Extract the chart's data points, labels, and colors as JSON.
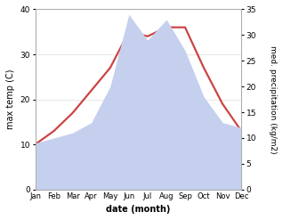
{
  "months": [
    "Jan",
    "Feb",
    "Mar",
    "Apr",
    "May",
    "Jun",
    "Jul",
    "Aug",
    "Sep",
    "Oct",
    "Nov",
    "Dec"
  ],
  "temperature": [
    10,
    13,
    17,
    22,
    27,
    35,
    34,
    36,
    36,
    27,
    19,
    13
  ],
  "precipitation": [
    9,
    10,
    11,
    13,
    20,
    34,
    29,
    33,
    27,
    18,
    13,
    12
  ],
  "temp_color": "#cc4444",
  "precip_fill_color": "#c5d0ee",
  "temp_ylim": [
    0,
    40
  ],
  "precip_ylim": [
    0,
    35
  ],
  "temp_yticks": [
    0,
    10,
    20,
    30,
    40
  ],
  "precip_yticks": [
    0,
    5,
    10,
    15,
    20,
    25,
    30,
    35
  ],
  "xlabel": "date (month)",
  "ylabel_left": "max temp (C)",
  "ylabel_right": "med. precipitation (kg/m2)",
  "bg_color": "#ffffff",
  "spine_color": "#aaaaaa",
  "grid_color": "#dddddd"
}
